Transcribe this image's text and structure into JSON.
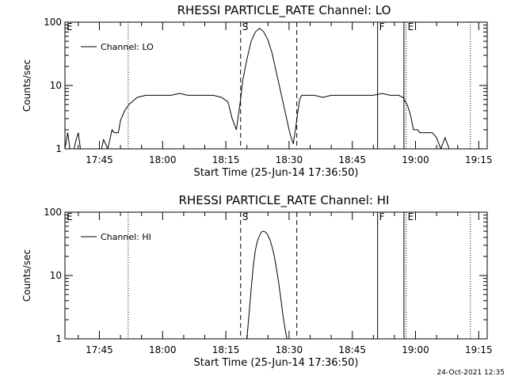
{
  "footer": {
    "timestamp": "24-Oct-2021 12:35"
  },
  "chart_data": [
    {
      "type": "line",
      "title": "RHESSI PARTICLE_RATE Channel: LO",
      "xlabel": "Start Time (25-Jun-14 17:36:50)",
      "ylabel": "Counts/sec",
      "yscale": "log",
      "ylim": [
        1,
        100
      ],
      "xlim": [
        "17:36:50",
        "19:17:00"
      ],
      "x_ticks": [
        "17:45",
        "18:00",
        "18:15",
        "18:30",
        "18:45",
        "19:00",
        "19:15"
      ],
      "y_ticks": [
        "1",
        "10",
        "100"
      ],
      "legend": {
        "position": "top-left",
        "entries": [
          "Channel: LO"
        ]
      },
      "grid": false,
      "series": [
        {
          "name": "Channel: LO",
          "x": [
            "17:36:50",
            "17:37:30",
            "17:38:00",
            "17:38:30",
            "17:39:00",
            "17:39:30",
            "17:40:00",
            "17:40:30",
            "17:41:00",
            "17:42:30",
            "17:43:00",
            "17:43:30",
            "17:44:00",
            "17:44:30",
            "17:45:00",
            "17:45:30",
            "17:46:00",
            "17:47:00",
            "17:48:00",
            "17:48:30",
            "17:49:00",
            "17:49:30",
            "17:50:00",
            "17:51:00",
            "17:52:00",
            "17:54:00",
            "17:56:00",
            "17:58:00",
            "18:00:00",
            "18:02:00",
            "18:04:00",
            "18:06:00",
            "18:08:00",
            "18:10:00",
            "18:12:00",
            "18:14:00",
            "18:15:30",
            "18:16:30",
            "18:17:30",
            "18:18:00",
            "18:18:30",
            "18:19:00",
            "18:20:00",
            "18:21:00",
            "18:22:00",
            "18:23:00",
            "18:24:00",
            "18:25:00",
            "18:26:00",
            "18:27:00",
            "18:28:00",
            "18:29:00",
            "18:30:00",
            "18:30:30",
            "18:31:00",
            "18:31:30",
            "18:32:00",
            "18:32:30",
            "18:33:00",
            "18:34:00",
            "18:36:00",
            "18:38:00",
            "18:40:00",
            "18:42:00",
            "18:44:00",
            "18:46:00",
            "18:48:00",
            "18:50:00",
            "18:52:00",
            "18:54:00",
            "18:56:00",
            "18:57:00",
            "18:58:00",
            "18:58:30",
            "18:59:00",
            "18:59:30",
            "19:00:00",
            "19:00:30",
            "19:01:00",
            "19:01:30",
            "19:02:00",
            "19:03:00",
            "19:04:00",
            "19:05:00",
            "19:06:00",
            "19:07:00",
            "19:08:00",
            "19:09:00",
            "19:10:00",
            "19:11:00",
            "19:12:00"
          ],
          "y": [
            1.0,
            1.8,
            1.0,
            1.0,
            1.0,
            1.4,
            1.8,
            1.0,
            1.0,
            1.0,
            1.0,
            1.0,
            1.0,
            1.0,
            1.0,
            1.0,
            1.4,
            1.0,
            2.0,
            1.8,
            1.8,
            1.8,
            2.8,
            4.0,
            5.0,
            6.5,
            7.0,
            7.0,
            7.0,
            7.0,
            7.5,
            7.0,
            7.0,
            7.0,
            7.0,
            6.5,
            5.5,
            3.0,
            2.0,
            3.5,
            6.0,
            12.0,
            26.0,
            50.0,
            70.0,
            80.0,
            70.0,
            52.0,
            32.0,
            16.0,
            8.0,
            4.0,
            2.0,
            1.5,
            1.2,
            2.0,
            3.5,
            6.0,
            7.0,
            7.0,
            7.0,
            6.5,
            7.0,
            7.0,
            7.0,
            7.0,
            7.0,
            7.0,
            7.5,
            7.0,
            7.0,
            6.5,
            5.0,
            4.0,
            3.0,
            2.0,
            2.0,
            2.0,
            1.8,
            1.8,
            1.8,
            1.8,
            1.8,
            1.5,
            1.0,
            1.5,
            1.0,
            1.0,
            1.0,
            1.0,
            1.0
          ]
        }
      ],
      "event_markers": [
        {
          "time": "17:36:50",
          "label": "E",
          "style": "none"
        },
        {
          "time": "17:51:50",
          "label": "",
          "style": "dotted"
        },
        {
          "time": "18:18:30",
          "label": "S",
          "style": "dashed"
        },
        {
          "time": "18:31:50",
          "label": "",
          "style": "dashed"
        },
        {
          "time": "18:51:00",
          "label": "F",
          "style": "solid"
        },
        {
          "time": "18:57:15",
          "label": "",
          "style": "solid"
        },
        {
          "time": "18:57:45",
          "label": "E",
          "style": "dotted"
        },
        {
          "time": "19:13:00",
          "label": "",
          "style": "dotted"
        }
      ]
    },
    {
      "type": "line",
      "title": "RHESSI PARTICLE_RATE Channel: HI",
      "xlabel": "Start Time (25-Jun-14 17:36:50)",
      "ylabel": "Counts/sec",
      "yscale": "log",
      "ylim": [
        1,
        100
      ],
      "xlim": [
        "17:36:50",
        "19:17:00"
      ],
      "x_ticks": [
        "17:45",
        "18:00",
        "18:15",
        "18:30",
        "18:45",
        "19:00",
        "19:15"
      ],
      "y_ticks": [
        "1",
        "10",
        "100"
      ],
      "legend": {
        "position": "top-left",
        "entries": [
          "Channel: HI"
        ]
      },
      "grid": false,
      "series": [
        {
          "name": "Channel: HI",
          "x": [
            "18:20:00",
            "18:20:30",
            "18:21:00",
            "18:21:30",
            "18:22:00",
            "18:22:30",
            "18:23:00",
            "18:23:30",
            "18:24:00",
            "18:24:30",
            "18:25:00",
            "18:25:30",
            "18:26:00",
            "18:26:30",
            "18:27:00",
            "18:27:30",
            "18:28:00",
            "18:28:30",
            "18:29:00",
            "18:29:30"
          ],
          "y": [
            1.0,
            2.5,
            6.0,
            14.0,
            25.0,
            35.0,
            43.0,
            49.0,
            50.0,
            48.0,
            43.0,
            36.0,
            28.0,
            20.0,
            13.0,
            8.0,
            4.5,
            2.5,
            1.5,
            1.0
          ]
        }
      ],
      "event_markers": [
        {
          "time": "17:36:50",
          "label": "E",
          "style": "none"
        },
        {
          "time": "17:51:50",
          "label": "",
          "style": "dotted"
        },
        {
          "time": "18:18:30",
          "label": "S",
          "style": "dashed"
        },
        {
          "time": "18:31:50",
          "label": "",
          "style": "dashed"
        },
        {
          "time": "18:51:00",
          "label": "F",
          "style": "solid"
        },
        {
          "time": "18:57:15",
          "label": "",
          "style": "solid"
        },
        {
          "time": "18:57:45",
          "label": "E",
          "style": "dotted"
        },
        {
          "time": "19:13:00",
          "label": "",
          "style": "dotted"
        }
      ]
    }
  ]
}
